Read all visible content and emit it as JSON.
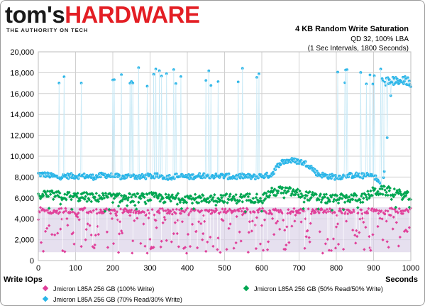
{
  "logo": {
    "part1": "tom's",
    "part2": "HARDWARE",
    "tagline": "THE AUTHORITY ON TECH"
  },
  "header": {
    "title": "4 KB Random Write Saturation",
    "subtitle1": "QD 32, 100% LBA",
    "subtitle2": "(1 Sec Intervals, 1800 Seconds)"
  },
  "colors": {
    "series1": "#e0409a",
    "series2": "#00a651",
    "series3": "#29b5e8",
    "band1": "#dcd3e8",
    "band3": "#c8e9f6"
  },
  "chart_data": {
    "type": "scatter",
    "title": "4 KB Random Write Saturation",
    "subtitle": "QD 32, 100% LBA (1 Sec Intervals, 1800 Seconds)",
    "xlabel": "Seconds",
    "ylabel": "Write IOps",
    "xlim": [
      0,
      1000
    ],
    "ylim": [
      0,
      20000
    ],
    "xticks": [
      0,
      100,
      200,
      300,
      400,
      500,
      600,
      700,
      800,
      900,
      1000
    ],
    "yticks": [
      0,
      2000,
      4000,
      6000,
      8000,
      10000,
      12000,
      14000,
      16000,
      18000,
      20000
    ],
    "ytick_labels": [
      "0",
      "2,000",
      "4,000",
      "6,000",
      "8,000",
      "10,000",
      "12,000",
      "14,000",
      "16,000",
      "18,000",
      "20,000"
    ],
    "grid": true,
    "legend_position": "bottom",
    "series": [
      {
        "name": "Jmicron L85A 256 GB (100% Write)",
        "color": "#e0409a",
        "x": [
          0,
          25,
          50,
          75,
          100,
          125,
          150,
          175,
          200,
          225,
          250,
          275,
          300,
          325,
          350,
          375,
          400,
          425,
          450,
          475,
          500,
          525,
          550,
          575,
          600,
          625,
          650,
          675,
          700,
          725,
          750,
          775,
          800,
          825,
          850,
          875,
          900,
          925,
          950,
          975,
          1000
        ],
        "y": [
          4900,
          4800,
          4700,
          4900,
          4600,
          4800,
          4700,
          4800,
          4700,
          4800,
          4700,
          4800,
          4700,
          4800,
          4600,
          4700,
          4800,
          4700,
          4600,
          4800,
          4700,
          4700,
          4800,
          4700,
          4800,
          4700,
          4800,
          4700,
          4800,
          4700,
          4800,
          4700,
          4800,
          4700,
          4800,
          4700,
          4800,
          4700,
          4800,
          4700,
          4800
        ]
      },
      {
        "name": "Jmicron L85A 256 GB (50% Read/50% Write)",
        "color": "#00a651",
        "x": [
          0,
          25,
          50,
          75,
          100,
          125,
          150,
          175,
          200,
          225,
          250,
          275,
          300,
          325,
          350,
          375,
          400,
          425,
          450,
          475,
          500,
          525,
          550,
          575,
          600,
          625,
          650,
          675,
          700,
          725,
          750,
          775,
          800,
          825,
          850,
          875,
          900,
          925,
          950,
          975,
          1000
        ],
        "y": [
          6400,
          6300,
          6200,
          6200,
          6100,
          6100,
          6000,
          6100,
          6000,
          6000,
          6000,
          6000,
          6100,
          6000,
          5900,
          6000,
          6000,
          5900,
          5900,
          6000,
          6000,
          5900,
          6000,
          6000,
          6000,
          6500,
          6700,
          6600,
          6400,
          6200,
          6000,
          5900,
          5900,
          6000,
          6000,
          6000,
          6600,
          6700,
          6600,
          6300,
          6100
        ]
      },
      {
        "name": "Jmicron L85A 256 GB (70% Read/30% Write)",
        "color": "#29b5e8",
        "x": [
          0,
          25,
          50,
          75,
          100,
          125,
          150,
          175,
          200,
          225,
          250,
          275,
          300,
          325,
          350,
          375,
          400,
          425,
          450,
          475,
          500,
          525,
          550,
          575,
          600,
          625,
          650,
          675,
          700,
          725,
          750,
          775,
          800,
          825,
          850,
          875,
          900,
          925,
          950,
          975,
          1000
        ],
        "y": [
          8300,
          8200,
          8000,
          8100,
          8100,
          8100,
          8000,
          8200,
          8100,
          8000,
          8100,
          8000,
          8100,
          8100,
          8000,
          8100,
          8000,
          8100,
          8200,
          8100,
          8100,
          8000,
          8100,
          8000,
          8100,
          8200,
          9400,
          9600,
          9500,
          9200,
          8300,
          8100,
          8000,
          8100,
          8200,
          8100,
          8200,
          7000,
          17200,
          17200,
          17200
        ]
      }
    ]
  },
  "legend": [
    "Jmicron L85A 256 GB (100% Write)",
    "Jmicron L85A 256 GB (50% Read/50% Write)",
    "Jmicron L85A 256 GB (70% Read/30% Write)"
  ]
}
